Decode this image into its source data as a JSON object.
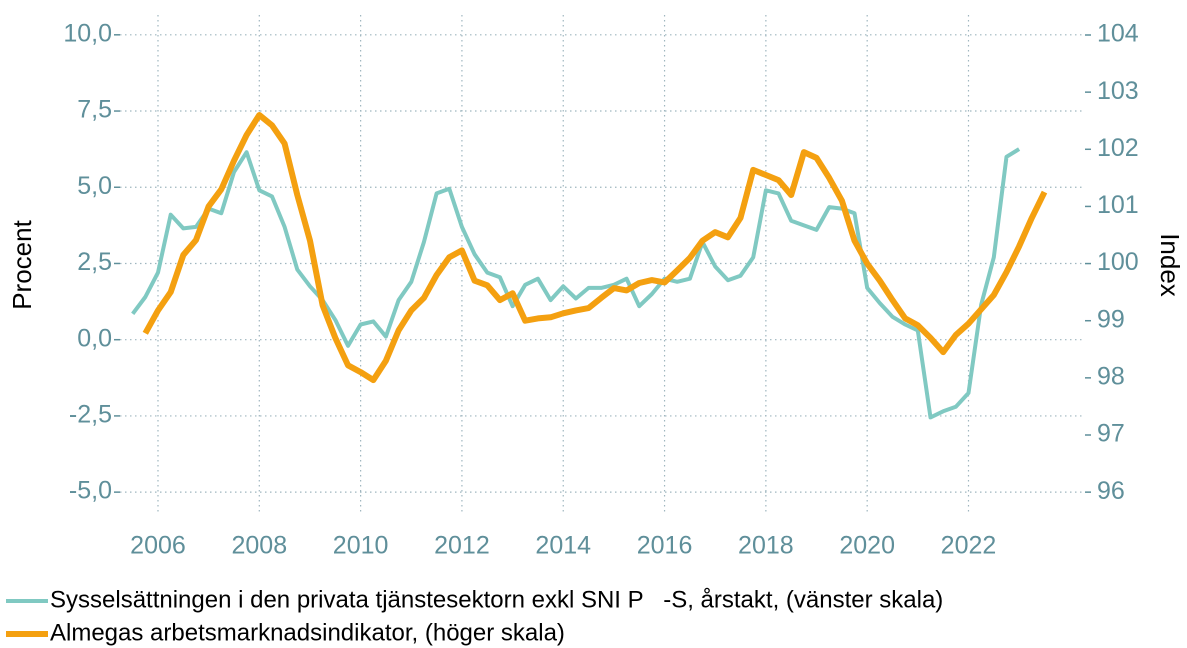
{
  "chart_data": {
    "type": "line",
    "ylabel": "Procent",
    "y2label": "Index",
    "xlim": [
      2005.25,
      2024.3
    ],
    "xticks": [
      2006,
      2008,
      2010,
      2012,
      2014,
      2016,
      2018,
      2020,
      2022
    ],
    "ylim": [
      -5.75,
      10.65
    ],
    "yticks": [
      {
        "value": -5,
        "label": "-5,0"
      },
      {
        "value": -2.5,
        "label": "-2,5"
      },
      {
        "value": 0,
        "label": "0,0"
      },
      {
        "value": 2.5,
        "label": "2,5"
      },
      {
        "value": 5,
        "label": "5,0"
      },
      {
        "value": 7.5,
        "label": "7,5"
      },
      {
        "value": 10,
        "label": "10,0"
      }
    ],
    "y2lim": [
      95.6,
      104.35
    ],
    "y2ticks": [
      96,
      97,
      98,
      99,
      100,
      101,
      102,
      103,
      104
    ],
    "grid": true,
    "series": [
      {
        "name": "Sysselsättningen i den privata tjänstesektorn exkl SNI P   -S, årstakt, (vänster skala)",
        "color": "#80c9c2",
        "axis": "y",
        "x": [
          2005.5,
          2005.75,
          2006,
          2006.25,
          2006.5,
          2006.75,
          2007,
          2007.25,
          2007.5,
          2007.75,
          2008,
          2008.25,
          2008.5,
          2008.75,
          2009,
          2009.25,
          2009.5,
          2009.75,
          2010,
          2010.25,
          2010.5,
          2010.75,
          2011,
          2011.25,
          2011.5,
          2011.75,
          2012,
          2012.25,
          2012.5,
          2012.75,
          2013,
          2013.25,
          2013.5,
          2013.75,
          2014,
          2014.25,
          2014.5,
          2014.75,
          2015,
          2015.25,
          2015.5,
          2015.75,
          2016,
          2016.25,
          2016.5,
          2016.75,
          2017,
          2017.25,
          2017.5,
          2017.75,
          2018,
          2018.25,
          2018.5,
          2018.75,
          2019,
          2019.25,
          2019.5,
          2019.75,
          2020,
          2020.25,
          2020.5,
          2020.75,
          2021,
          2021.25,
          2021.5,
          2021.75,
          2022,
          2022.25,
          2022.5,
          2022.75,
          2023
        ],
        "values": [
          0.85,
          1.4,
          2.2,
          4.1,
          3.65,
          3.7,
          4.3,
          4.15,
          5.5,
          6.15,
          4.9,
          4.7,
          3.7,
          2.3,
          1.75,
          1.3,
          0.65,
          -0.2,
          0.5,
          0.6,
          0.1,
          1.3,
          1.9,
          3.2,
          4.8,
          4.95,
          3.7,
          2.8,
          2.2,
          2.05,
          1.1,
          1.8,
          2.0,
          1.3,
          1.75,
          1.35,
          1.7,
          1.7,
          1.8,
          2.0,
          1.1,
          1.5,
          2.0,
          1.9,
          2.0,
          3.2,
          2.4,
          1.95,
          2.1,
          2.7,
          4.9,
          4.8,
          3.9,
          3.75,
          3.6,
          4.35,
          4.3,
          4.15,
          1.7,
          1.2,
          0.75,
          0.5,
          0.3,
          -2.55,
          -2.35,
          -2.2,
          -1.75,
          1.15,
          2.7,
          6.0,
          6.25
        ]
      },
      {
        "name": "Almegas arbetsmarknadsindikator, (höger skala)",
        "color": "#f4a010",
        "axis": "y2",
        "x": [
          2005.75,
          2006,
          2006.25,
          2006.5,
          2006.75,
          2007,
          2007.25,
          2007.5,
          2007.75,
          2008,
          2008.25,
          2008.5,
          2008.75,
          2009,
          2009.25,
          2009.5,
          2009.75,
          2010,
          2010.25,
          2010.5,
          2010.75,
          2011,
          2011.25,
          2011.5,
          2011.75,
          2012,
          2012.25,
          2012.5,
          2012.75,
          2013,
          2013.25,
          2013.5,
          2013.75,
          2014,
          2014.25,
          2014.5,
          2014.75,
          2015,
          2015.25,
          2015.5,
          2015.75,
          2016,
          2016.25,
          2016.5,
          2016.75,
          2017,
          2017.25,
          2017.5,
          2017.75,
          2018,
          2018.25,
          2018.5,
          2018.75,
          2019,
          2019.25,
          2019.5,
          2019.75,
          2020,
          2020.25,
          2020.5,
          2020.75,
          2021,
          2021.25,
          2021.5,
          2021.75,
          2022,
          2022.25,
          2022.5,
          2022.75,
          2023,
          2023.25,
          2023.5
        ],
        "values": [
          98.78,
          99.18,
          99.5,
          100.15,
          100.41,
          101.0,
          101.3,
          101.8,
          102.25,
          102.6,
          102.42,
          102.1,
          101.2,
          100.4,
          99.27,
          98.7,
          98.22,
          98.1,
          97.96,
          98.3,
          98.83,
          99.18,
          99.4,
          99.8,
          100.11,
          100.23,
          99.7,
          99.62,
          99.36,
          99.48,
          99.0,
          99.04,
          99.06,
          99.13,
          99.18,
          99.22,
          99.4,
          99.57,
          99.53,
          99.66,
          99.71,
          99.67,
          99.88,
          100.1,
          100.4,
          100.55,
          100.46,
          100.8,
          101.64,
          101.55,
          101.46,
          101.2,
          101.95,
          101.85,
          101.5,
          101.1,
          100.4,
          100.0,
          99.7,
          99.36,
          99.04,
          98.92,
          98.7,
          98.45,
          98.75,
          98.95,
          99.2,
          99.45,
          99.85,
          100.3,
          100.8,
          101.25
        ]
      }
    ]
  }
}
